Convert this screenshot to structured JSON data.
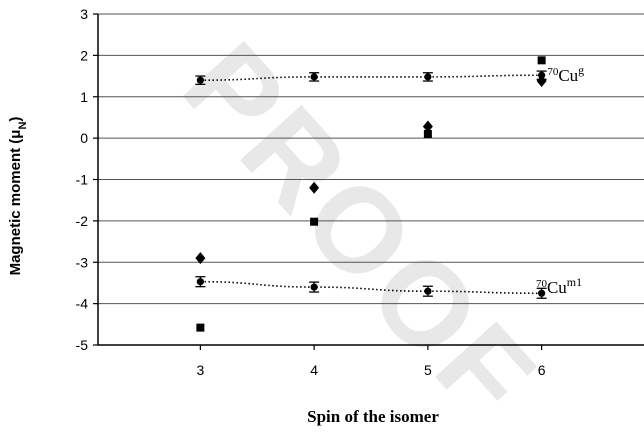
{
  "chart_data": {
    "type": "scatter",
    "title": "",
    "xlabel": "Spin of the isomer",
    "ylabel": "Magnetic moment (μ",
    "ylabel_sub": "N",
    "ylabel_close": ")",
    "xlim": [
      2.1,
      6.9
    ],
    "ylim": [
      -5,
      3
    ],
    "xticks": [
      3,
      4,
      5,
      6
    ],
    "yticks": [
      -5,
      -4,
      -3,
      -2,
      -1,
      0,
      1,
      2,
      3
    ],
    "grid": "horizontal",
    "watermark": "PROOF",
    "series": [
      {
        "marker": "circle-errorbar",
        "line": "dotted",
        "x": [
          3,
          4,
          5,
          6
        ],
        "y": [
          1.4,
          1.48,
          1.48,
          1.52
        ],
        "err": [
          0.1,
          0.1,
          0.1,
          0.1
        ]
      },
      {
        "marker": "circle-errorbar",
        "line": "dotted",
        "x": [
          3,
          4,
          5,
          6
        ],
        "y": [
          -3.47,
          -3.6,
          -3.7,
          -3.75
        ],
        "err": [
          0.12,
          0.12,
          0.12,
          0.12
        ]
      },
      {
        "marker": "diamond",
        "x": [
          3,
          4,
          5,
          6
        ],
        "y": [
          -2.9,
          -1.2,
          0.28,
          1.38
        ]
      },
      {
        "marker": "square",
        "x": [
          3,
          4,
          5,
          6
        ],
        "y": [
          -4.58,
          -2.02,
          0.1,
          1.88
        ]
      }
    ],
    "annotations": [
      {
        "mass": "70",
        "symbol": "Cu",
        "sup": "g",
        "x": 6.05,
        "y": 1.52
      },
      {
        "mass": "70",
        "symbol": "Cu",
        "sup": "m1",
        "x": 5.95,
        "y": -3.6
      }
    ]
  }
}
